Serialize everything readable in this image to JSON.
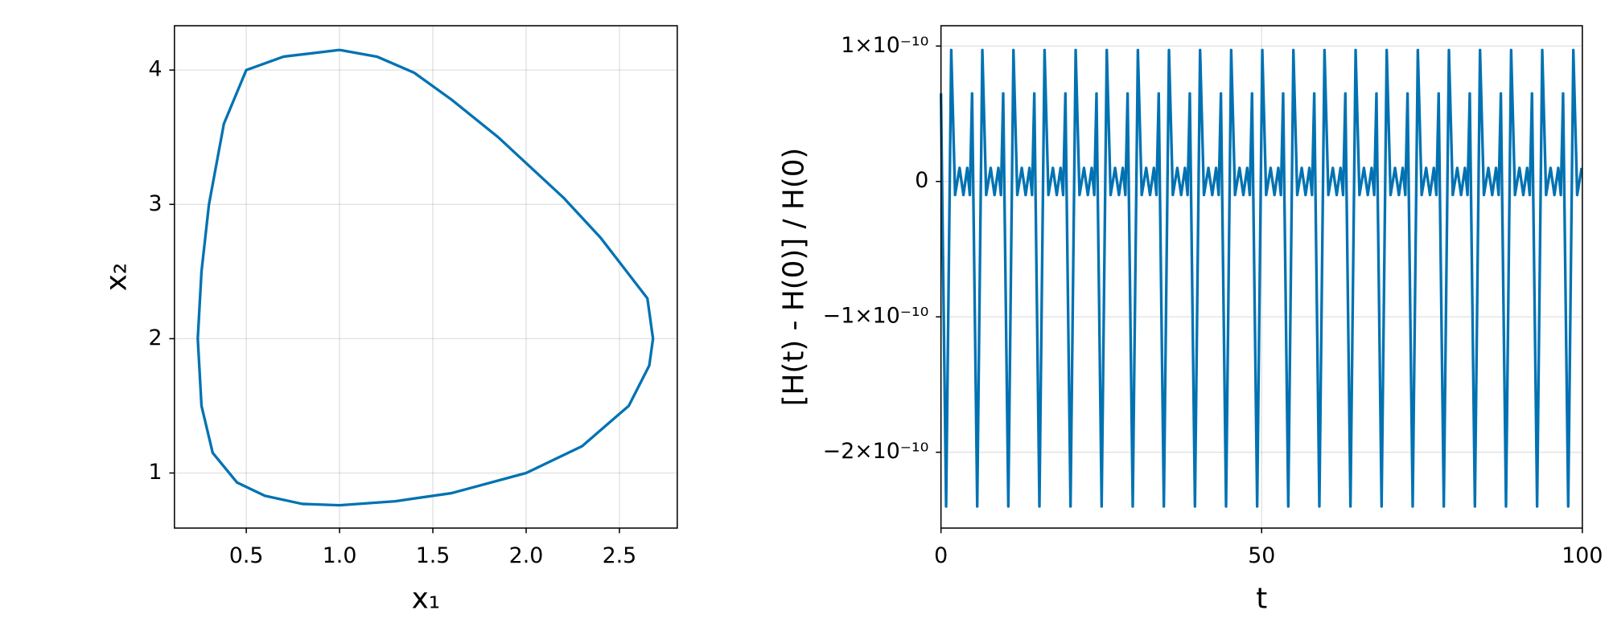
{
  "chart_data": [
    {
      "type": "line",
      "xlabel": "x₁",
      "ylabel": "x₂",
      "color": "#0072b2",
      "grid": true,
      "xlim": [
        0.115,
        2.81
      ],
      "ylim": [
        0.59,
        4.33
      ],
      "xticks": [
        0.5,
        {
          "value": 1,
          "label": "1.0"
        },
        1.5,
        {
          "value": 2,
          "label": "2.0"
        },
        2.5
      ],
      "yticks": [
        1,
        2,
        3,
        4
      ],
      "x": [
        1.0,
        0.7,
        0.5,
        0.38,
        0.3,
        0.26,
        0.24,
        0.26,
        0.32,
        0.45,
        0.6,
        0.8,
        1.0,
        1.3,
        1.6,
        2.0,
        2.3,
        2.55,
        2.66,
        2.68,
        2.65,
        2.4,
        2.2,
        1.85,
        1.6,
        1.4,
        1.2,
        1.0
      ],
      "values": [
        4.15,
        4.1,
        4.0,
        3.6,
        3.0,
        2.5,
        2.0,
        1.5,
        1.15,
        0.93,
        0.83,
        0.77,
        0.76,
        0.79,
        0.85,
        1.0,
        1.2,
        1.5,
        1.8,
        2.0,
        2.3,
        2.75,
        3.05,
        3.5,
        3.78,
        3.98,
        4.1,
        4.15
      ]
    },
    {
      "type": "line",
      "xlabel": "t",
      "ylabel": "[H(t) - H(0)] / H(0)",
      "color": "#0072b2",
      "grid": true,
      "xlim": [
        0,
        100
      ],
      "ylim": [
        -2.56e-10,
        1.15e-10
      ],
      "xticks": [
        0,
        50,
        100
      ],
      "yticks": [
        {
          "value": 1e-10,
          "label": "1×10⁻¹⁰"
        },
        0,
        {
          "value": -1e-10,
          "label": "−1×10⁻¹⁰"
        },
        {
          "value": -2e-10,
          "label": "−2×10⁻¹⁰"
        }
      ],
      "x": [
        0,
        0.8,
        1.6,
        2.2,
        2.9,
        3.5,
        4.1,
        4.5,
        4.85,
        5.65,
        6.45,
        7.05,
        7.75,
        8.35,
        8.95,
        9.35,
        9.7,
        10.5,
        11.3,
        11.9,
        12.6,
        13.2,
        13.8,
        14.2,
        14.55,
        15.35,
        16.15,
        16.75,
        17.45,
        18.05,
        18.65,
        19.05,
        19.4,
        20.2,
        21,
        21.6,
        22.3,
        22.9,
        23.5,
        23.9,
        24.25,
        25.05,
        25.85,
        26.45,
        27.15,
        27.75,
        28.35,
        28.75,
        29.1,
        29.9,
        30.7,
        31.3,
        32,
        32.6,
        33.2,
        33.6,
        33.95,
        34.75,
        35.55,
        36.15,
        36.85,
        37.45,
        38.05,
        38.45,
        38.8,
        39.6,
        40.4,
        41,
        41.7,
        42.3,
        42.9,
        43.3,
        43.65,
        44.45,
        45.25,
        45.85,
        46.55,
        47.15,
        47.75,
        48.15,
        48.5,
        49.3,
        50.1,
        50.7,
        51.4,
        52,
        52.6,
        53,
        53.35,
        54.15,
        54.95,
        55.55,
        56.25,
        56.85,
        57.45,
        57.85,
        58.2,
        59,
        59.8,
        60.4,
        61.1,
        61.7,
        62.3,
        62.7,
        63.05,
        63.85,
        64.65,
        65.25,
        65.95,
        66.55,
        67.15,
        67.55,
        67.9,
        68.7,
        69.5,
        70.1,
        70.8,
        71.4,
        72,
        72.4,
        72.75,
        73.55,
        74.35,
        74.95,
        75.65,
        76.25,
        76.85,
        77.25,
        77.6,
        78.4,
        79.2,
        79.8,
        80.5,
        81.1,
        81.7,
        82.1,
        82.45,
        83.25,
        84.05,
        84.65,
        85.35,
        85.95,
        86.55,
        86.95,
        87.3,
        88.1,
        88.9,
        89.5,
        90.2,
        90.8,
        91.4,
        91.8,
        92.15,
        92.95,
        93.75,
        94.35,
        95.05,
        95.65,
        96.25,
        96.65,
        97,
        97.8,
        98.6,
        99.2,
        99.9
      ],
      "values": [
        6.5e-11,
        -2.4e-10,
        9.7e-11,
        -1e-11,
        1e-11,
        -1e-11,
        1e-11,
        -1e-11,
        6.5e-11,
        -2.4e-10,
        9.7e-11,
        -1e-11,
        1e-11,
        -1e-11,
        1e-11,
        -1e-11,
        6.5e-11,
        -2.4e-10,
        9.7e-11,
        -1e-11,
        1e-11,
        -1e-11,
        1e-11,
        -1e-11,
        6.5e-11,
        -2.4e-10,
        9.7e-11,
        -1e-11,
        1e-11,
        -1e-11,
        1e-11,
        -1e-11,
        6.5e-11,
        -2.4e-10,
        9.7e-11,
        -1e-11,
        1e-11,
        -1e-11,
        1e-11,
        -1e-11,
        6.5e-11,
        -2.4e-10,
        9.7e-11,
        -1e-11,
        1e-11,
        -1e-11,
        1e-11,
        -1e-11,
        6.5e-11,
        -2.4e-10,
        9.7e-11,
        -1e-11,
        1e-11,
        -1e-11,
        1e-11,
        -1e-11,
        6.5e-11,
        -2.4e-10,
        9.7e-11,
        -1e-11,
        1e-11,
        -1e-11,
        1e-11,
        -1e-11,
        6.5e-11,
        -2.4e-10,
        9.7e-11,
        -1e-11,
        1e-11,
        -1e-11,
        1e-11,
        -1e-11,
        6.5e-11,
        -2.4e-10,
        9.7e-11,
        -1e-11,
        1e-11,
        -1e-11,
        1e-11,
        -1e-11,
        6.5e-11,
        -2.4e-10,
        9.7e-11,
        -1e-11,
        1e-11,
        -1e-11,
        1e-11,
        -1e-11,
        6.5e-11,
        -2.4e-10,
        9.7e-11,
        -1e-11,
        1e-11,
        -1e-11,
        1e-11,
        -1e-11,
        6.5e-11,
        -2.4e-10,
        9.7e-11,
        -1e-11,
        1e-11,
        -1e-11,
        1e-11,
        -1e-11,
        6.5e-11,
        -2.4e-10,
        9.7e-11,
        -1e-11,
        1e-11,
        -1e-11,
        1e-11,
        -1e-11,
        6.5e-11,
        -2.4e-10,
        9.7e-11,
        -1e-11,
        1e-11,
        -1e-11,
        1e-11,
        -1e-11,
        6.5e-11,
        -2.4e-10,
        9.7e-11,
        -1e-11,
        1e-11,
        -1e-11,
        1e-11,
        -1e-11,
        6.5e-11,
        -2.4e-10,
        9.7e-11,
        -1e-11,
        1e-11,
        -1e-11,
        1e-11,
        -1e-11,
        6.5e-11,
        -2.4e-10,
        9.7e-11,
        -1e-11,
        1e-11,
        -1e-11,
        1e-11,
        -1e-11,
        6.5e-11,
        -2.4e-10,
        9.7e-11,
        -1e-11,
        1e-11,
        -1e-11,
        1e-11,
        -1e-11,
        6.5e-11,
        -2.4e-10,
        9.7e-11,
        -1e-11,
        1e-11,
        -1e-11,
        1e-11,
        -1e-11,
        6.5e-11,
        -2.4e-10,
        9.7e-11,
        -1e-11,
        1e-11
      ]
    }
  ]
}
